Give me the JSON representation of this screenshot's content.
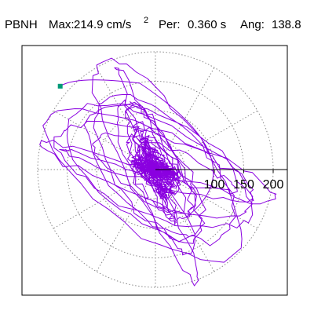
{
  "header": {
    "station": "PBNH",
    "max_label": "Max:",
    "max_value": "214.9 cm/s",
    "max_exp": "2",
    "per_label": "Per:",
    "per_value": "0.360 s",
    "ang_label": "Ang:",
    "ang_value": "138.8"
  },
  "chart_data": {
    "type": "scatter",
    "subtype": "polar particle-motion hodogram",
    "title": "",
    "xlabel": "",
    "ylabel": "",
    "radial_ticks": [
      100,
      150,
      200
    ],
    "radial_tick_labels": [
      "100",
      "150",
      "200"
    ],
    "rings": [
      50,
      100,
      150,
      200
    ],
    "spokes_deg": [
      0,
      30,
      60,
      90,
      120,
      150,
      180,
      210,
      240,
      270,
      300,
      330
    ],
    "grid": true,
    "max_amplitude": 214.9,
    "max_point_angle_deg": 138.8,
    "trace_color": "#8a00e0",
    "marker_color": "#009977",
    "grid_color": "#888888"
  }
}
